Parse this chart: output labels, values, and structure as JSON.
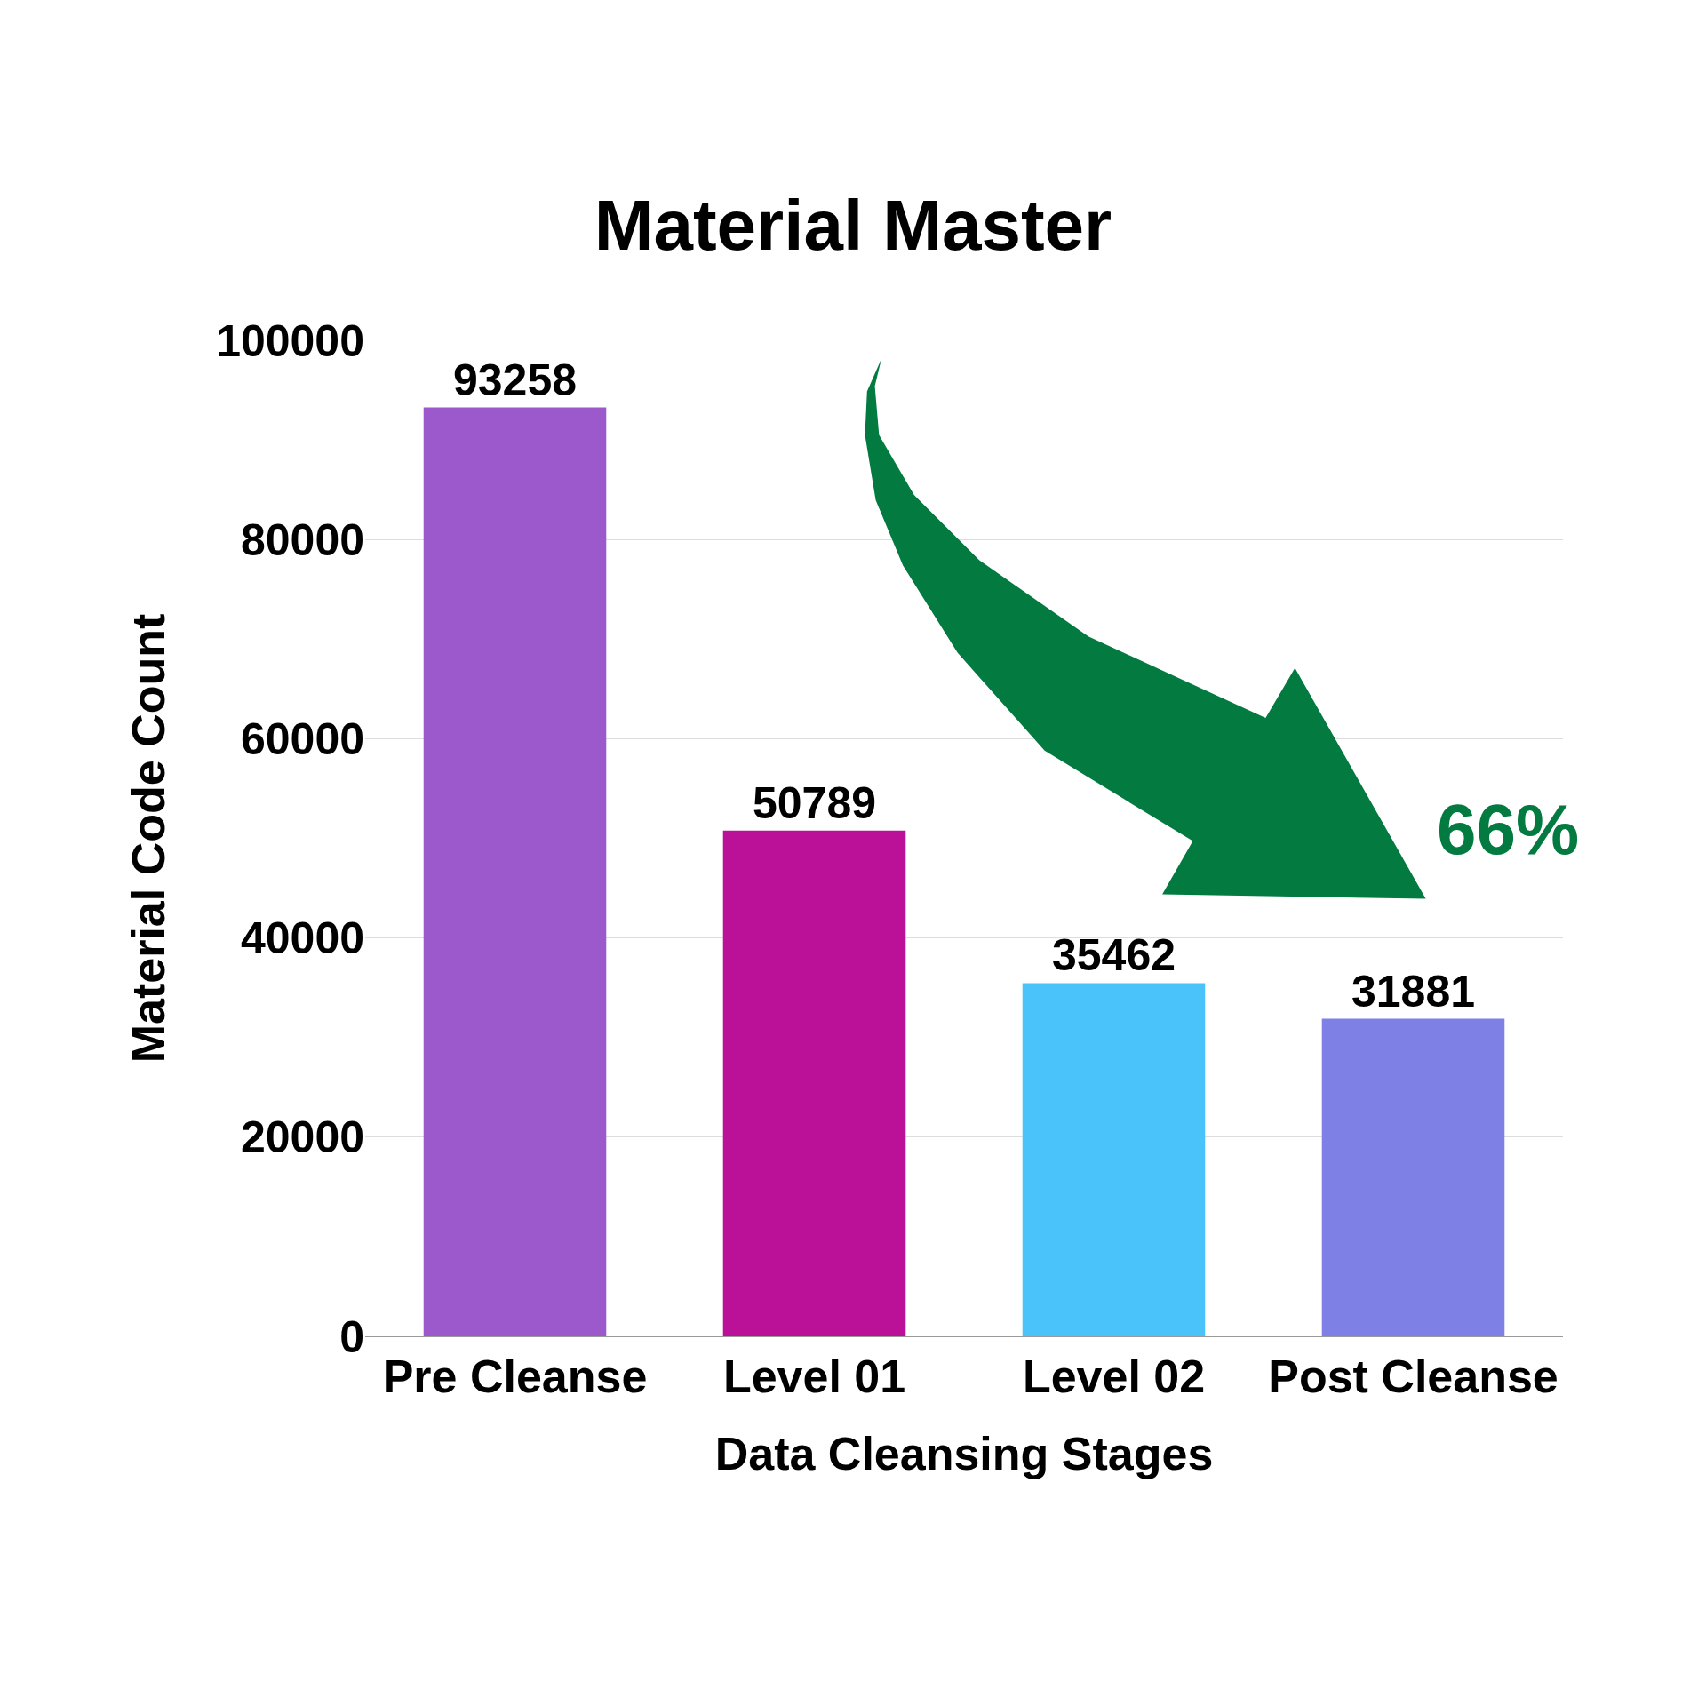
{
  "chart_data": {
    "type": "bar",
    "title": "Material Master",
    "xlabel": "Data Cleansing Stages",
    "ylabel": "Material Code Count",
    "categories": [
      "Pre Cleanse",
      "Level 01",
      "Level 02",
      "Post Cleanse"
    ],
    "values": [
      93258,
      50789,
      35462,
      31881
    ],
    "colors": [
      "#9b59cb",
      "#bb1199",
      "#4ac3fb",
      "#7f80e5"
    ],
    "ylim": [
      0,
      100000
    ],
    "yticks": [
      0,
      20000,
      40000,
      60000,
      80000,
      100000
    ],
    "grid": "y",
    "data_labels": true,
    "annotations": [
      "66%"
    ]
  }
}
